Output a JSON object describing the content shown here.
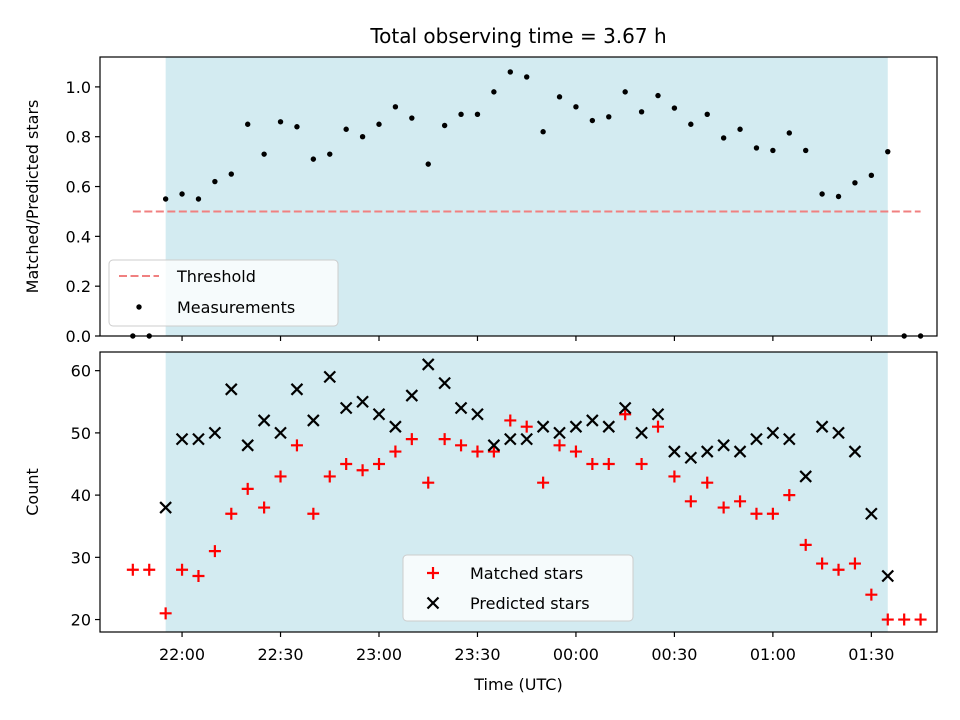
{
  "chart_data": [
    {
      "type": "scatter",
      "title": "Total observing time = 3.67 h",
      "xlabel": "",
      "ylabel": "Matched/Predicted stars",
      "ylim": [
        0.0,
        1.12
      ],
      "yticks": [
        "0.0",
        "0.2",
        "0.4",
        "0.6",
        "0.8",
        "1.0"
      ],
      "yvalues": [
        0.0,
        0.2,
        0.4,
        0.6,
        0.8,
        1.0
      ],
      "observing_window": {
        "start": "21:55",
        "end": "01:35",
        "color": "#d3ebf1"
      },
      "threshold": {
        "name": "Threshold",
        "value": 0.5,
        "x_start": "21:45",
        "x_end": "01:45",
        "color": "#f08080",
        "style": "dashed"
      },
      "series": [
        {
          "name": "Measurements",
          "marker": "dot",
          "color": "#000000",
          "x": [
            "21:45",
            "21:50",
            "21:55",
            "22:00",
            "22:05",
            "22:10",
            "22:15",
            "22:20",
            "22:25",
            "22:30",
            "22:35",
            "22:40",
            "22:45",
            "22:50",
            "22:55",
            "23:00",
            "23:05",
            "23:10",
            "23:15",
            "23:20",
            "23:25",
            "23:30",
            "23:35",
            "23:40",
            "23:45",
            "23:50",
            "23:55",
            "00:00",
            "00:05",
            "00:10",
            "00:15",
            "00:20",
            "00:25",
            "00:30",
            "00:35",
            "00:40",
            "00:45",
            "00:50",
            "00:55",
            "01:00",
            "01:05",
            "01:10",
            "01:15",
            "01:20",
            "01:25",
            "01:30",
            "01:35",
            "01:40",
            "01:45"
          ],
          "y": [
            0.0,
            0.0,
            0.55,
            0.57,
            0.55,
            0.62,
            0.65,
            0.85,
            0.73,
            0.86,
            0.84,
            0.71,
            0.73,
            0.83,
            0.8,
            0.85,
            0.92,
            0.875,
            0.69,
            0.845,
            0.89,
            0.89,
            0.98,
            1.06,
            1.04,
            0.82,
            0.96,
            0.92,
            0.865,
            0.88,
            0.98,
            0.9,
            0.965,
            0.915,
            0.85,
            0.89,
            0.795,
            0.83,
            0.755,
            0.745,
            0.815,
            0.745,
            0.57,
            0.56,
            0.615,
            0.645,
            0.74,
            0.0,
            0.0
          ]
        }
      ],
      "legend": {
        "placement": "lower-left",
        "entries": [
          "Threshold",
          "Measurements"
        ]
      }
    },
    {
      "type": "scatter",
      "title": "",
      "xlabel": "Time (UTC)",
      "ylabel": "Count",
      "ylim": [
        18,
        63
      ],
      "yticks": [
        "20",
        "30",
        "40",
        "50",
        "60"
      ],
      "yvalues": [
        20,
        30,
        40,
        50,
        60
      ],
      "xlim": [
        "21:35",
        "01:50"
      ],
      "xticks": [
        "22:00",
        "22:30",
        "23:00",
        "23:30",
        "00:00",
        "00:30",
        "01:00",
        "01:30"
      ],
      "observing_window": {
        "start": "21:55",
        "end": "01:35",
        "color": "#d3ebf1"
      },
      "series": [
        {
          "name": "Matched stars",
          "marker": "plus",
          "color": "#ff0000",
          "x": [
            "21:45",
            "21:50",
            "21:55",
            "22:00",
            "22:05",
            "22:10",
            "22:15",
            "22:20",
            "22:25",
            "22:30",
            "22:35",
            "22:40",
            "22:45",
            "22:50",
            "22:55",
            "23:00",
            "23:05",
            "23:10",
            "23:15",
            "23:20",
            "23:25",
            "23:30",
            "23:35",
            "23:40",
            "23:45",
            "23:50",
            "23:55",
            "00:00",
            "00:05",
            "00:10",
            "00:15",
            "00:20",
            "00:25",
            "00:30",
            "00:35",
            "00:40",
            "00:45",
            "00:50",
            "00:55",
            "01:00",
            "01:05",
            "01:10",
            "01:15",
            "01:20",
            "01:25",
            "01:30",
            "01:35",
            "01:40",
            "01:45"
          ],
          "y": [
            28,
            28,
            21,
            28,
            27,
            31,
            37,
            41,
            38,
            43,
            48,
            37,
            43,
            45,
            44,
            45,
            47,
            49,
            42,
            49,
            48,
            47,
            47,
            52,
            51,
            42,
            48,
            47,
            45,
            45,
            53,
            45,
            51,
            43,
            39,
            42,
            38,
            39,
            37,
            37,
            40,
            32,
            29,
            28,
            29,
            24,
            20,
            20,
            20
          ]
        },
        {
          "name": "Predicted stars",
          "marker": "x",
          "color": "#000000",
          "x": [
            "21:55",
            "22:00",
            "22:05",
            "22:10",
            "22:15",
            "22:20",
            "22:25",
            "22:30",
            "22:35",
            "22:40",
            "22:45",
            "22:50",
            "22:55",
            "23:00",
            "23:05",
            "23:10",
            "23:15",
            "23:20",
            "23:25",
            "23:30",
            "23:35",
            "23:40",
            "23:45",
            "23:50",
            "23:55",
            "00:00",
            "00:05",
            "00:10",
            "00:15",
            "00:20",
            "00:25",
            "00:30",
            "00:35",
            "00:40",
            "00:45",
            "00:50",
            "00:55",
            "01:00",
            "01:05",
            "01:10",
            "01:15",
            "01:20",
            "01:25",
            "01:30",
            "01:35"
          ],
          "y": [
            38,
            49,
            49,
            50,
            57,
            48,
            52,
            50,
            57,
            52,
            59,
            54,
            55,
            53,
            51,
            56,
            61,
            58,
            54,
            53,
            48,
            49,
            49,
            51,
            50,
            51,
            52,
            51,
            54,
            50,
            53,
            47,
            46,
            47,
            48,
            47,
            49,
            50,
            49,
            43,
            51,
            50,
            47,
            37,
            27
          ]
        }
      ],
      "legend": {
        "placement": "lower-center",
        "entries": [
          "Matched stars",
          "Predicted stars"
        ]
      }
    }
  ]
}
